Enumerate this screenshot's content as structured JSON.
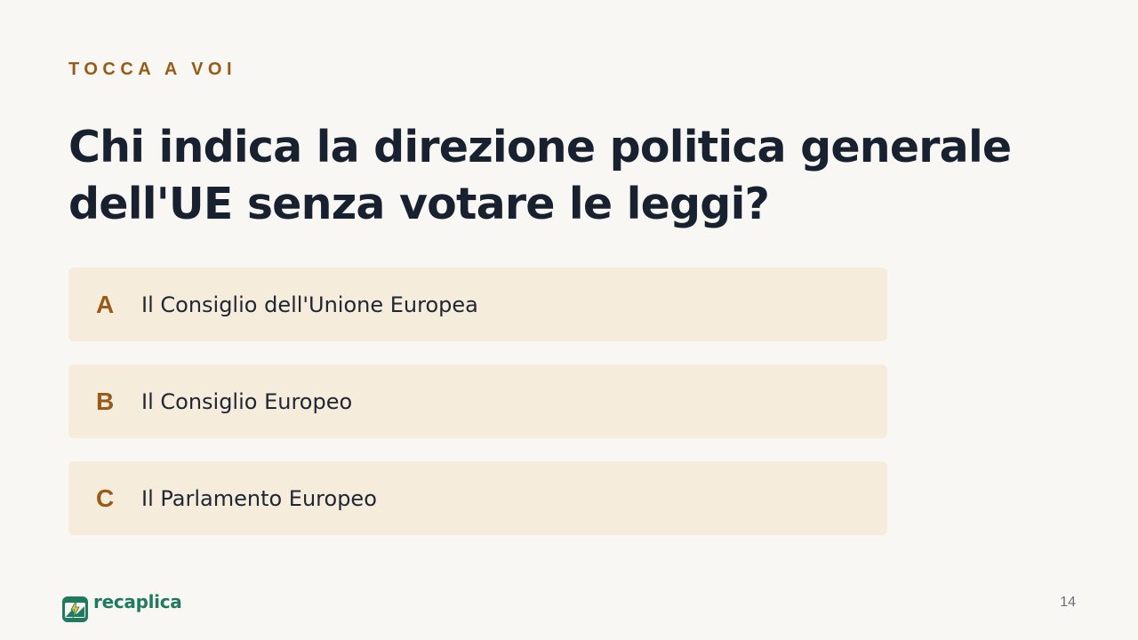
{
  "slide": {
    "eyebrow": "TOCCA A VOI",
    "question": "Chi indica la direzione politica generale dell'UE senza votare le leggi?",
    "options": [
      {
        "letter": "A",
        "text": "Il Consiglio dell'Unione Europea"
      },
      {
        "letter": "B",
        "text": "Il Consiglio Europeo"
      },
      {
        "letter": "C",
        "text": "Il Parlamento Europeo"
      }
    ],
    "page_number": "14"
  },
  "brand": {
    "name": "recaplica",
    "icon": "recaplica-logo-icon"
  },
  "colors": {
    "background": "#f8f7f3",
    "accent": "#9a5a17",
    "option_background": "#f6ecdc",
    "title": "#18212f",
    "brand": "#1f7a60"
  }
}
